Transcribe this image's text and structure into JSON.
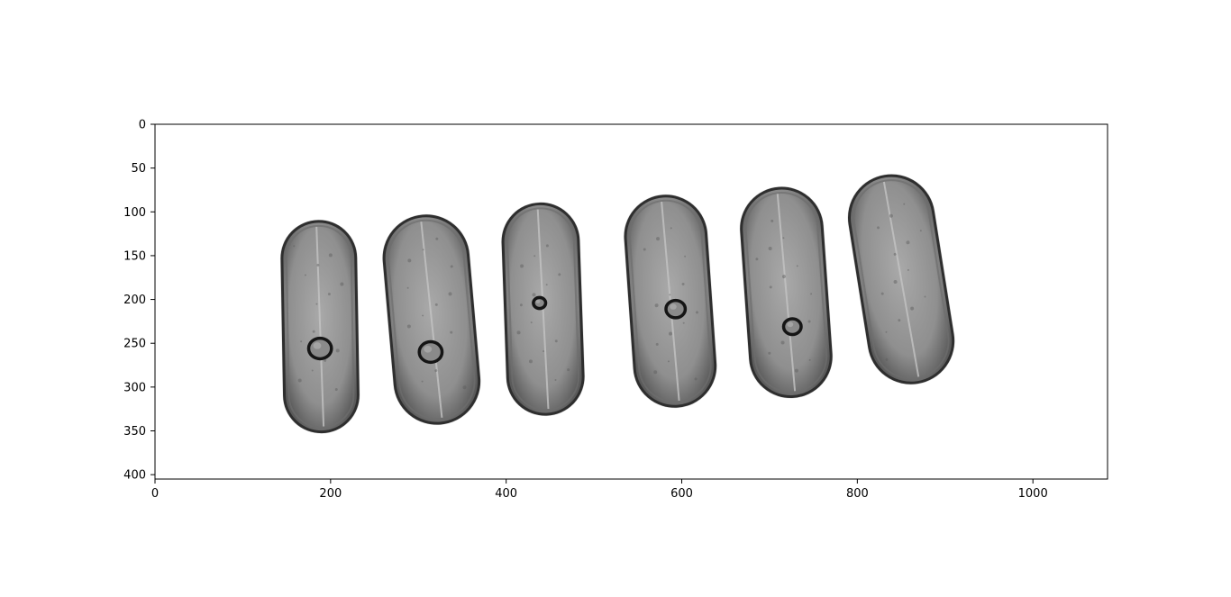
{
  "figure": {
    "background": "#ffffff",
    "image_extent": {
      "x_min": 0,
      "x_max": 1085,
      "y_min": 0,
      "y_max": 405
    },
    "colormap": "grayscale",
    "x_axis": {
      "ticks": [
        0,
        200,
        400,
        600,
        800,
        1000
      ],
      "tick_labels": [
        "0",
        "200",
        "400",
        "600",
        "800",
        "1000"
      ]
    },
    "y_axis": {
      "inverted": true,
      "ticks": [
        0,
        50,
        100,
        150,
        200,
        250,
        300,
        350,
        400
      ],
      "tick_labels": [
        "0",
        "50",
        "100",
        "150",
        "200",
        "250",
        "300",
        "350",
        "400"
      ]
    },
    "image_content": {
      "subject": "six translucent softgel capsules photographed in grayscale",
      "capsules": [
        {
          "center_x": 188,
          "center_y": 231,
          "length": 240,
          "width": 84,
          "tilt_deg": -1,
          "bubble": {
            "x": 188,
            "y": 256,
            "r": 13
          }
        },
        {
          "center_x": 315,
          "center_y": 223,
          "length": 237,
          "width": 96,
          "tilt_deg": -5,
          "bubble": {
            "x": 314,
            "y": 260,
            "r": 13
          }
        },
        {
          "center_x": 442,
          "center_y": 211,
          "length": 240,
          "width": 86,
          "tilt_deg": -2,
          "bubble": {
            "x": 438,
            "y": 204,
            "r": 7
          }
        },
        {
          "center_x": 587,
          "center_y": 202,
          "length": 240,
          "width": 92,
          "tilt_deg": -4,
          "bubble": {
            "x": 593,
            "y": 211,
            "r": 11
          }
        },
        {
          "center_x": 719,
          "center_y": 192,
          "length": 238,
          "width": 92,
          "tilt_deg": -4,
          "bubble": {
            "x": 726,
            "y": 231,
            "r": 10
          }
        },
        {
          "center_x": 850,
          "center_y": 177,
          "length": 238,
          "width": 96,
          "tilt_deg": -9,
          "bubble": null
        }
      ]
    }
  }
}
